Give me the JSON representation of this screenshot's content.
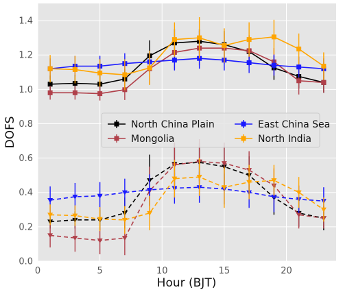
{
  "chart_data": {
    "type": "line",
    "xlabel": "Hour (BJT)",
    "ylabel": "DOFS",
    "xlim": [
      0,
      24
    ],
    "ylim": [
      0,
      1.5
    ],
    "x_ticks": [
      0,
      5,
      10,
      15,
      20
    ],
    "y_ticks": [
      0.0,
      0.2,
      0.4,
      0.6,
      0.8,
      1.0,
      1.2,
      1.4
    ],
    "x_tick_labels": [
      "0",
      "5",
      "10",
      "15",
      "20"
    ],
    "y_tick_labels": [
      "0.0",
      "0.2",
      "0.4",
      "0.6",
      "0.8",
      "1.0",
      "1.2",
      "1.4"
    ],
    "grid": true,
    "background": "#e5e5e5",
    "legend_position": "center",
    "x": [
      1,
      3,
      5,
      7,
      9,
      11,
      13,
      15,
      17,
      19,
      21,
      23
    ],
    "series": [
      {
        "name": "North China Plain",
        "color": "#000000",
        "marker": "square",
        "upper": {
          "values": [
            1.03,
            1.035,
            1.03,
            1.06,
            1.195,
            1.27,
            1.28,
            1.26,
            1.22,
            1.125,
            1.075,
            1.04
          ],
          "errors": [
            0.05,
            0.05,
            0.05,
            0.06,
            0.09,
            0.08,
            0.07,
            0.08,
            0.08,
            0.07,
            0.07,
            0.06
          ]
        },
        "lower": {
          "values": [
            0.23,
            0.24,
            0.24,
            0.28,
            0.47,
            0.565,
            0.575,
            0.55,
            0.5,
            0.37,
            0.28,
            0.25
          ],
          "errors": [
            0.04,
            0.05,
            0.06,
            0.09,
            0.15,
            0.12,
            0.11,
            0.12,
            0.11,
            0.1,
            0.08,
            0.07
          ]
        }
      },
      {
        "name": "Mongolia",
        "color": "#b0404a",
        "marker": "square",
        "upper": {
          "values": [
            0.98,
            0.98,
            0.975,
            0.998,
            1.12,
            1.215,
            1.24,
            1.24,
            1.225,
            1.16,
            1.05,
            1.04
          ],
          "errors": [
            0.04,
            0.04,
            0.04,
            0.06,
            0.09,
            0.1,
            0.1,
            0.09,
            0.09,
            0.08,
            0.08,
            0.06
          ]
        },
        "lower": {
          "values": [
            0.15,
            0.135,
            0.12,
            0.135,
            0.41,
            0.56,
            0.58,
            0.57,
            0.53,
            0.44,
            0.27,
            0.25
          ],
          "errors": [
            0.07,
            0.08,
            0.08,
            0.1,
            0.14,
            0.13,
            0.13,
            0.12,
            0.11,
            0.1,
            0.08,
            0.06
          ]
        }
      },
      {
        "name": "East China Sea",
        "color": "#1a1aff",
        "marker": "square",
        "upper": {
          "values": [
            1.12,
            1.135,
            1.135,
            1.15,
            1.16,
            1.17,
            1.18,
            1.17,
            1.155,
            1.14,
            1.13,
            1.12
          ],
          "errors": [
            0.06,
            0.06,
            0.06,
            0.06,
            0.06,
            0.06,
            0.06,
            0.06,
            0.06,
            0.06,
            0.06,
            0.06
          ]
        },
        "lower": {
          "values": [
            0.355,
            0.375,
            0.38,
            0.4,
            0.415,
            0.425,
            0.43,
            0.42,
            0.4,
            0.375,
            0.36,
            0.35
          ],
          "errors": [
            0.08,
            0.08,
            0.08,
            0.08,
            0.09,
            0.09,
            0.09,
            0.09,
            0.09,
            0.09,
            0.08,
            0.08
          ]
        }
      },
      {
        "name": "North India",
        "color": "#ffa500",
        "marker": "square",
        "upper": {
          "values": [
            1.12,
            1.115,
            1.095,
            1.085,
            1.125,
            1.29,
            1.3,
            1.255,
            1.29,
            1.305,
            1.235,
            1.135
          ],
          "errors": [
            0.08,
            0.08,
            0.08,
            0.09,
            0.1,
            0.1,
            0.12,
            0.1,
            0.1,
            0.1,
            0.09,
            0.08
          ]
        },
        "lower": {
          "values": [
            0.27,
            0.265,
            0.245,
            0.24,
            0.28,
            0.48,
            0.49,
            0.43,
            0.46,
            0.47,
            0.4,
            0.3
          ],
          "errors": [
            0.06,
            0.06,
            0.07,
            0.08,
            0.1,
            0.11,
            0.11,
            0.12,
            0.1,
            0.09,
            0.09,
            0.07
          ]
        }
      }
    ]
  }
}
